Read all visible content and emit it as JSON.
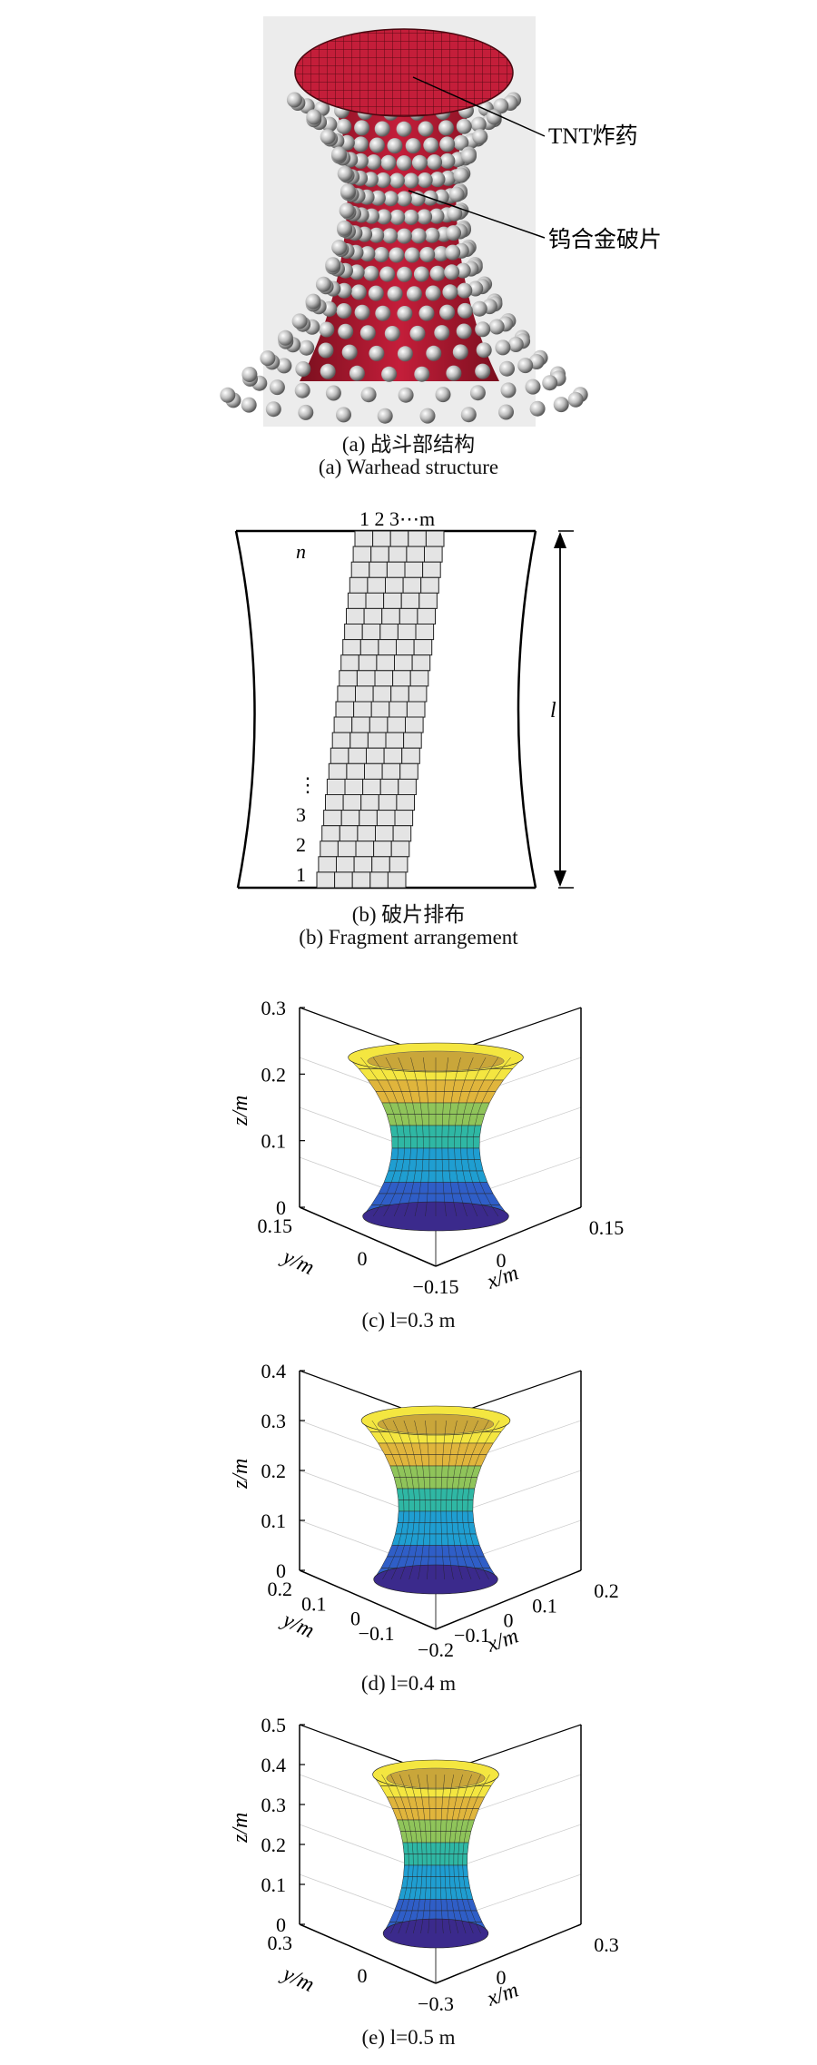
{
  "panel_a": {
    "label_tnt": "TNT炸药",
    "label_fragment": "钨合金破片",
    "caption_cn": "(a) 战斗部结构",
    "caption_en": "(a) Warhead structure",
    "colors": {
      "charge": "#c41e3a",
      "fragment": "#b8b8b8",
      "background": "#ececec"
    }
  },
  "panel_b": {
    "top_labels": "1 2 3⋯m",
    "row_label_n": "n",
    "row_labels": [
      "⋮",
      "3",
      "2",
      "1"
    ],
    "dim_label": "l",
    "caption_cn": "(b) 破片排布",
    "caption_en": "(b) Fragment arrangement"
  },
  "panels_3d": [
    {
      "z_ticks": [
        "0.3",
        "0.2",
        "0.1",
        "0"
      ],
      "z_label": "z/m",
      "y_ticks": [
        "0.15",
        "0"
      ],
      "y_label": "y/m",
      "x_ticks": [
        "−0.15",
        "0",
        "0.15"
      ],
      "x_label": "x/m",
      "caption": "(c) l=0.3 m"
    },
    {
      "z_ticks": [
        "0.4",
        "0.3",
        "0.2",
        "0.1",
        "0"
      ],
      "z_label": "z/m",
      "y_ticks": [
        "0.2",
        "0.1",
        "0",
        "−0.1"
      ],
      "y_label": "y/m",
      "x_ticks": [
        "−0.2",
        "−0.1",
        "0",
        "0.1",
        "0.2"
      ],
      "x_label": "x/m",
      "caption": "(d) l=0.4 m"
    },
    {
      "z_ticks": [
        "0.5",
        "0.4",
        "0.3",
        "0.2",
        "0.1",
        "0"
      ],
      "z_label": "z/m",
      "y_ticks": [
        "0.3",
        "0"
      ],
      "y_label": "y/m",
      "x_ticks": [
        "−0.3",
        "0",
        "0.3"
      ],
      "x_label": "x/m",
      "caption": "(e) l=0.5 m"
    }
  ]
}
